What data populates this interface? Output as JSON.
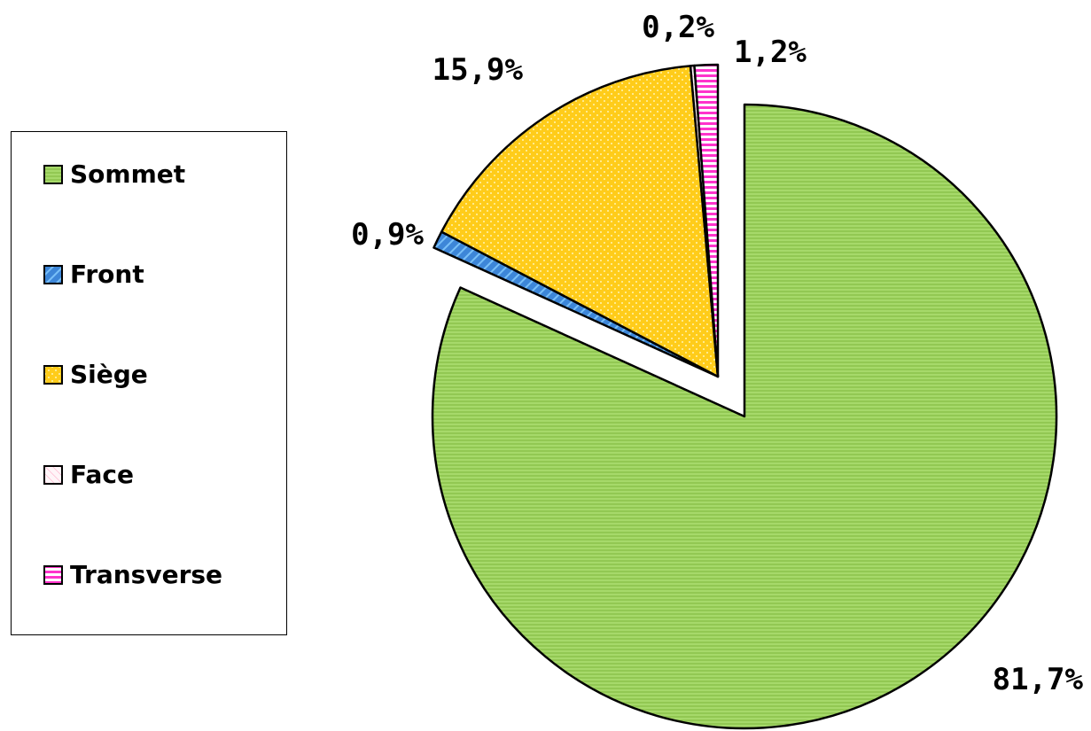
{
  "chart_data": {
    "type": "pie",
    "exploded": true,
    "title": "",
    "slices": [
      {
        "label": "Sommet",
        "value": 81.7,
        "value_label": "81,7%",
        "color": "#A6D96A",
        "pattern": "horizontal-lines"
      },
      {
        "label": "Front",
        "value": 0.9,
        "value_label": "0,9%",
        "color": "#3D86D8",
        "pattern": "diagonal-stripes"
      },
      {
        "label": "Siège",
        "value": 15.9,
        "value_label": "15,9%",
        "color": "#FFCC1A",
        "pattern": "dots"
      },
      {
        "label": "Face",
        "value": 0.2,
        "value_label": "0,2%",
        "color": "#FFE4EE",
        "pattern": "light-diagonal"
      },
      {
        "label": "Transverse",
        "value": 1.2,
        "value_label": "1,2%",
        "color": "#FF33CC",
        "pattern": "horizontal-stripes"
      }
    ],
    "legend": {
      "position": "left",
      "items": [
        "Sommet",
        "Front",
        "Siège",
        "Face",
        "Transverse"
      ]
    }
  }
}
